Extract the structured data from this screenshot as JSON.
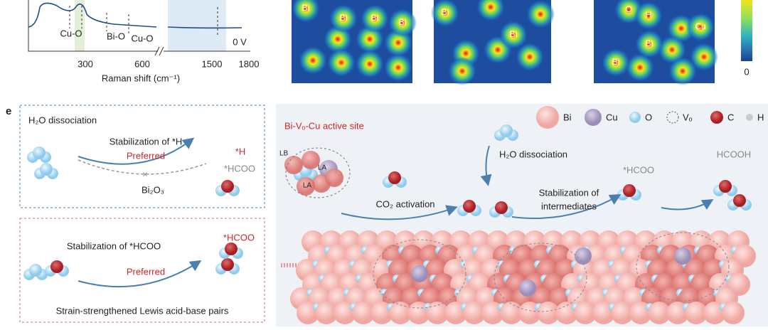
{
  "raman": {
    "peaks": [
      "Cu-O",
      "Bi-O",
      "Cu-O"
    ],
    "potential": "0 V",
    "xticks": [
      "300",
      "600",
      "1500",
      "1800"
    ],
    "xlabel": "Raman shift (cm⁻¹)"
  },
  "maps": [
    {
      "labels": [
        "Bi",
        "Bi",
        "Bi",
        "Bi"
      ]
    },
    {
      "labels": [
        "Bi",
        "Bi"
      ]
    },
    {
      "labels": [
        "O",
        "H",
        "Cu",
        "Bi",
        "Bi"
      ]
    }
  ],
  "colorbar": {
    "min": "0"
  },
  "panel_e": {
    "label": "e",
    "box1": {
      "title": "H₂O dissociation",
      "arrow_label": "Stabilization of *H",
      "preferred": "Preferred",
      "product": "*H",
      "alt_product": "*HCOO",
      "catalyst": "Bi₂O₃"
    },
    "box2": {
      "arrow_label": "Stabilization of *HCOO",
      "product": "*HCOO",
      "preferred": "Preferred",
      "caption": "Strain-strengthened Lewis acid-base pairs"
    },
    "site": {
      "title": "Bi-Vₒ-Cu active site",
      "lb": "LB",
      "la": [
        "LA",
        "LA"
      ]
    },
    "steps": {
      "co2": "CO₂ activation",
      "h2o": "H₂O dissociation",
      "stab": [
        "Stabilization of",
        "intermediates"
      ],
      "hcoo": "*HCOO",
      "hcooh": "HCOOH"
    },
    "legend": [
      "Bi",
      "Cu",
      "O",
      "Vₒ",
      "C",
      "H"
    ]
  }
}
